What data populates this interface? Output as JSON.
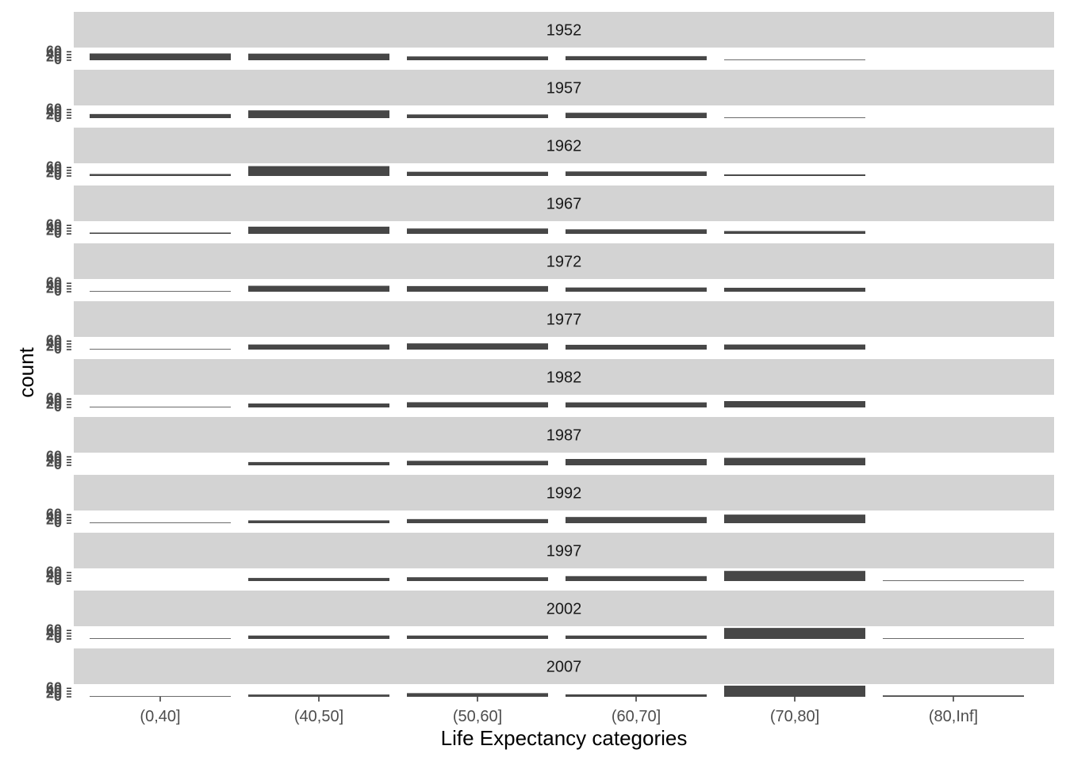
{
  "chart_data": {
    "type": "bar",
    "xlabel": "Life Expectancy categories",
    "ylabel": "count",
    "categories": [
      "(0,40]",
      "(40,50]",
      "(50,60]",
      "(60,70]",
      "(70,80]",
      "(80,Inf]"
    ],
    "y_ticks": [
      0,
      20,
      40,
      60
    ],
    "ylim": [
      0,
      90
    ],
    "facet_by": "year",
    "facets": [
      {
        "label": "1952",
        "values": [
          48,
          47,
          27,
          29,
          4,
          0
        ]
      },
      {
        "label": "1957",
        "values": [
          29,
          55,
          26,
          38,
          4,
          0
        ]
      },
      {
        "label": "1962",
        "values": [
          14,
          70,
          30,
          32,
          11,
          0
        ]
      },
      {
        "label": "1967",
        "values": [
          9,
          51,
          38,
          32,
          20,
          0
        ]
      },
      {
        "label": "1972",
        "values": [
          2,
          42,
          40,
          30,
          28,
          0
        ]
      },
      {
        "label": "1977",
        "values": [
          2,
          36,
          44,
          34,
          36,
          0
        ]
      },
      {
        "label": "1982",
        "values": [
          1,
          28,
          37,
          36,
          45,
          0
        ]
      },
      {
        "label": "1987",
        "values": [
          0,
          23,
          32,
          45,
          53,
          0
        ]
      },
      {
        "label": "1992",
        "values": [
          1,
          20,
          29,
          44,
          61,
          0
        ]
      },
      {
        "label": "1997",
        "values": [
          0,
          22,
          27,
          35,
          72,
          1
        ]
      },
      {
        "label": "2002",
        "values": [
          1,
          24,
          24,
          24,
          78,
          3
        ]
      },
      {
        "label": "2007",
        "values": [
          1,
          16,
          26,
          17,
          79,
          10
        ]
      }
    ],
    "colors": {
      "bar": "#474747",
      "strip_background": "#d3d3d3",
      "panel_background": "#ffffff",
      "text": "#1a1a1a",
      "tick_text": "#4d4d4d"
    },
    "grid": false,
    "legend": "none"
  }
}
